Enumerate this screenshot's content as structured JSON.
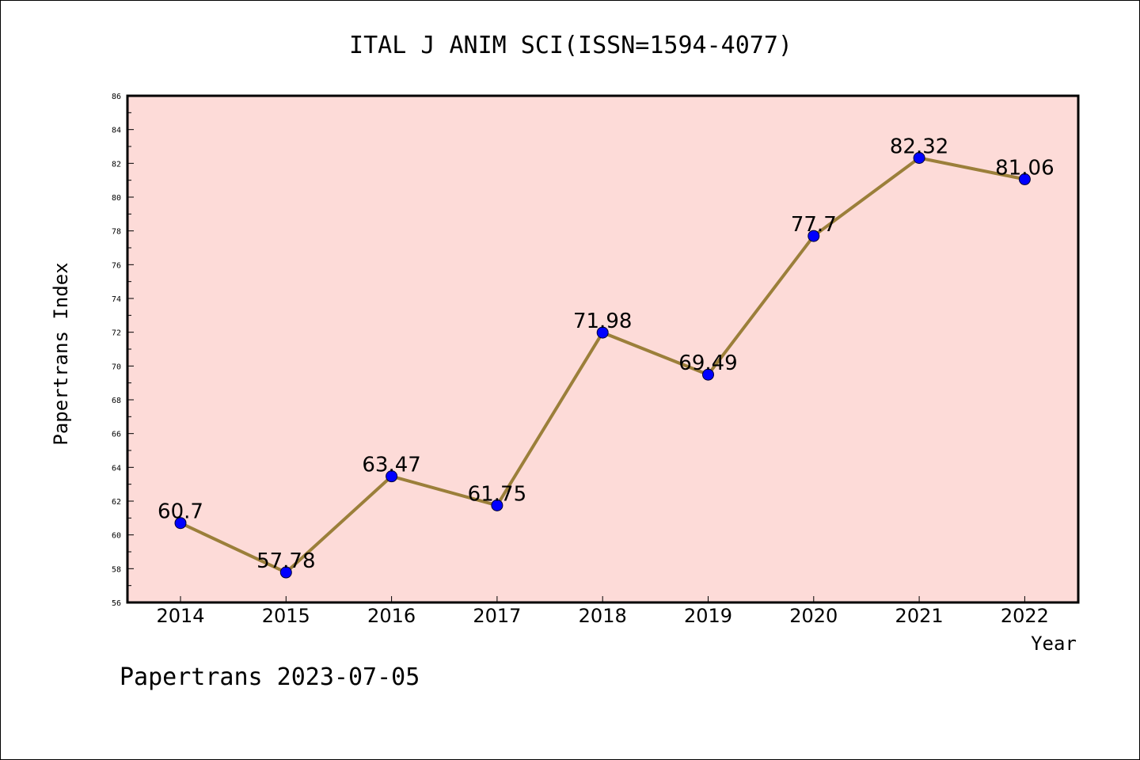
{
  "chart_data": {
    "type": "line",
    "title": "ITAL J ANIM SCI(ISSN=1594-4077)",
    "xlabel": "Year",
    "ylabel": "Papertrans Index",
    "categories": [
      "2014",
      "2015",
      "2016",
      "2017",
      "2018",
      "2019",
      "2020",
      "2021",
      "2022"
    ],
    "values": [
      60.7,
      57.78,
      63.47,
      61.75,
      71.98,
      69.49,
      77.7,
      82.32,
      81.06
    ],
    "data_labels": [
      "60.7",
      "57.78",
      "63.47",
      "61.75",
      "71.98",
      "69.49",
      "77.7",
      "82.32",
      "81.06"
    ],
    "ylim": [
      56,
      86
    ],
    "yticks": [
      "56",
      "58",
      "60",
      "62",
      "64",
      "66",
      "68",
      "70",
      "72",
      "74",
      "76",
      "78",
      "80",
      "82",
      "84",
      "86"
    ],
    "grid": false,
    "legend": "none",
    "colors": {
      "plot_background": "#fddbd8",
      "line": "#9b7f3a",
      "marker": "#0000ff"
    }
  },
  "footer": "Papertrans 2023-07-05"
}
